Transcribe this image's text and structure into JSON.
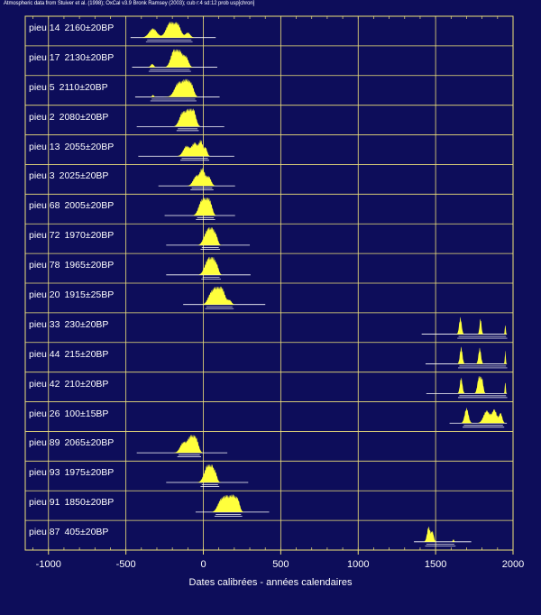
{
  "header": "Atmospheric data from Stuiver et al. (1998); OxCal v3.9 Bronk Ramsey (2003); cub r:4 sd:12 prob usp[chron]",
  "chart_data": {
    "type": "multiplot",
    "xlabel": "Dates calibrées - années calendaires",
    "xlim": [
      -1150,
      2000
    ],
    "xticks": [
      -1000,
      -500,
      0,
      500,
      1000,
      1500,
      2000
    ],
    "xtick_labels": [
      "-1000",
      "-500",
      "0",
      "500",
      "1000",
      "1500",
      "2000"
    ],
    "grid": true,
    "colors": {
      "background": "#0d0d5a",
      "frame": "#f0e27a",
      "fill": "#ffff3c",
      "text": "#ffffff"
    },
    "rows": [
      {
        "name": "pieu 14",
        "date": "2160±20BP",
        "range": [
          -470,
          80
        ],
        "peaks": [
          [
            -325,
            25,
            0.55
          ],
          [
            -215,
            25,
            0.9
          ],
          [
            -165,
            20,
            0.75
          ],
          [
            -100,
            15,
            0.3
          ]
        ]
      },
      {
        "name": "pieu 17",
        "date": "2130±20BP",
        "range": [
          -460,
          90
        ],
        "peaks": [
          [
            -330,
            10,
            0.2
          ],
          [
            -190,
            20,
            1.0
          ],
          [
            -150,
            20,
            0.85
          ],
          [
            -110,
            15,
            0.55
          ]
        ]
      },
      {
        "name": "pieu 5",
        "date": "2110±20BP",
        "range": [
          -440,
          105
        ],
        "peaks": [
          [
            -325,
            6,
            0.12
          ],
          [
            -160,
            25,
            0.85
          ],
          [
            -110,
            20,
            0.95
          ],
          [
            -75,
            15,
            0.6
          ]
        ]
      },
      {
        "name": "pieu 2",
        "date": "2080±20BP",
        "range": [
          -430,
          135
        ],
        "peaks": [
          [
            -135,
            20,
            0.8
          ],
          [
            -90,
            20,
            1.0
          ],
          [
            -60,
            15,
            0.7
          ]
        ]
      },
      {
        "name": "pieu 13",
        "date": "2055±20BP",
        "range": [
          -420,
          200
        ],
        "peaks": [
          [
            -110,
            20,
            0.6
          ],
          [
            -55,
            20,
            0.8
          ],
          [
            -15,
            12,
            0.85
          ],
          [
            15,
            10,
            0.5
          ]
        ]
      },
      {
        "name": "pieu 3",
        "date": "2025±20BP",
        "range": [
          -290,
          205
        ],
        "peaks": [
          [
            -45,
            20,
            0.6
          ],
          [
            -5,
            15,
            1.0
          ],
          [
            35,
            15,
            0.55
          ]
        ]
      },
      {
        "name": "pieu 68",
        "date": "2005±20BP",
        "range": [
          -250,
          205
        ],
        "peaks": [
          [
            -10,
            20,
            0.9
          ],
          [
            25,
            15,
            1.0
          ],
          [
            50,
            12,
            0.5
          ]
        ]
      },
      {
        "name": "pieu 72",
        "date": "1970±20BP",
        "range": [
          -240,
          300
        ],
        "peaks": [
          [
            20,
            20,
            0.65
          ],
          [
            55,
            20,
            1.0
          ],
          [
            85,
            10,
            0.3
          ]
        ]
      },
      {
        "name": "pieu 78",
        "date": "1965±20BP",
        "range": [
          -240,
          305
        ],
        "peaks": [
          [
            25,
            20,
            0.7
          ],
          [
            60,
            20,
            1.0
          ],
          [
            90,
            10,
            0.3
          ]
        ]
      },
      {
        "name": "pieu 20",
        "date": "1915±25BP",
        "range": [
          -130,
          400
        ],
        "peaks": [
          [
            50,
            20,
            0.65
          ],
          [
            90,
            20,
            1.0
          ],
          [
            125,
            18,
            0.75
          ],
          [
            170,
            12,
            0.25
          ]
        ]
      },
      {
        "name": "pieu 33",
        "date": "230±20BP",
        "range": [
          1410,
          1960
        ],
        "peaks": [
          [
            1660,
            8,
            1.0
          ],
          [
            1790,
            6,
            0.95
          ],
          [
            1950,
            3,
            0.6
          ]
        ]
      },
      {
        "name": "pieu 44",
        "date": "215±20BP",
        "range": [
          1435,
          1960
        ],
        "peaks": [
          [
            1665,
            8,
            1.0
          ],
          [
            1785,
            8,
            0.95
          ],
          [
            1950,
            3,
            0.8
          ]
        ]
      },
      {
        "name": "pieu 42",
        "date": "210±20BP",
        "range": [
          1440,
          1960
        ],
        "peaks": [
          [
            1665,
            8,
            0.95
          ],
          [
            1780,
            10,
            1.0
          ],
          [
            1800,
            8,
            0.8
          ],
          [
            1950,
            3,
            0.75
          ]
        ]
      },
      {
        "name": "pieu 26",
        "date": "100±15BP",
        "range": [
          1590,
          1960
        ],
        "peaks": [
          [
            1700,
            12,
            0.9
          ],
          [
            1830,
            20,
            0.75
          ],
          [
            1880,
            15,
            0.8
          ],
          [
            1920,
            10,
            0.6
          ]
        ]
      },
      {
        "name": "pieu 89",
        "date": "2065±20BP",
        "range": [
          -430,
          155
        ],
        "peaks": [
          [
            -130,
            20,
            0.6
          ],
          [
            -80,
            20,
            1.0
          ],
          [
            -45,
            15,
            0.7
          ]
        ]
      },
      {
        "name": "pieu 93",
        "date": "1975±20BP",
        "range": [
          -240,
          290
        ],
        "peaks": [
          [
            20,
            20,
            0.65
          ],
          [
            50,
            20,
            1.0
          ],
          [
            80,
            10,
            0.3
          ]
        ]
      },
      {
        "name": "pieu 91",
        "date": "1850±20BP",
        "range": [
          -50,
          425
        ],
        "peaks": [
          [
            110,
            20,
            0.6
          ],
          [
            150,
            22,
            0.85
          ],
          [
            195,
            20,
            0.9
          ],
          [
            225,
            12,
            0.5
          ]
        ]
      },
      {
        "name": "pieu 87",
        "date": "405±20BP",
        "range": [
          1360,
          1730
        ],
        "peaks": [
          [
            1455,
            10,
            0.9
          ],
          [
            1480,
            8,
            0.6
          ],
          [
            1615,
            4,
            0.15
          ]
        ]
      }
    ]
  }
}
